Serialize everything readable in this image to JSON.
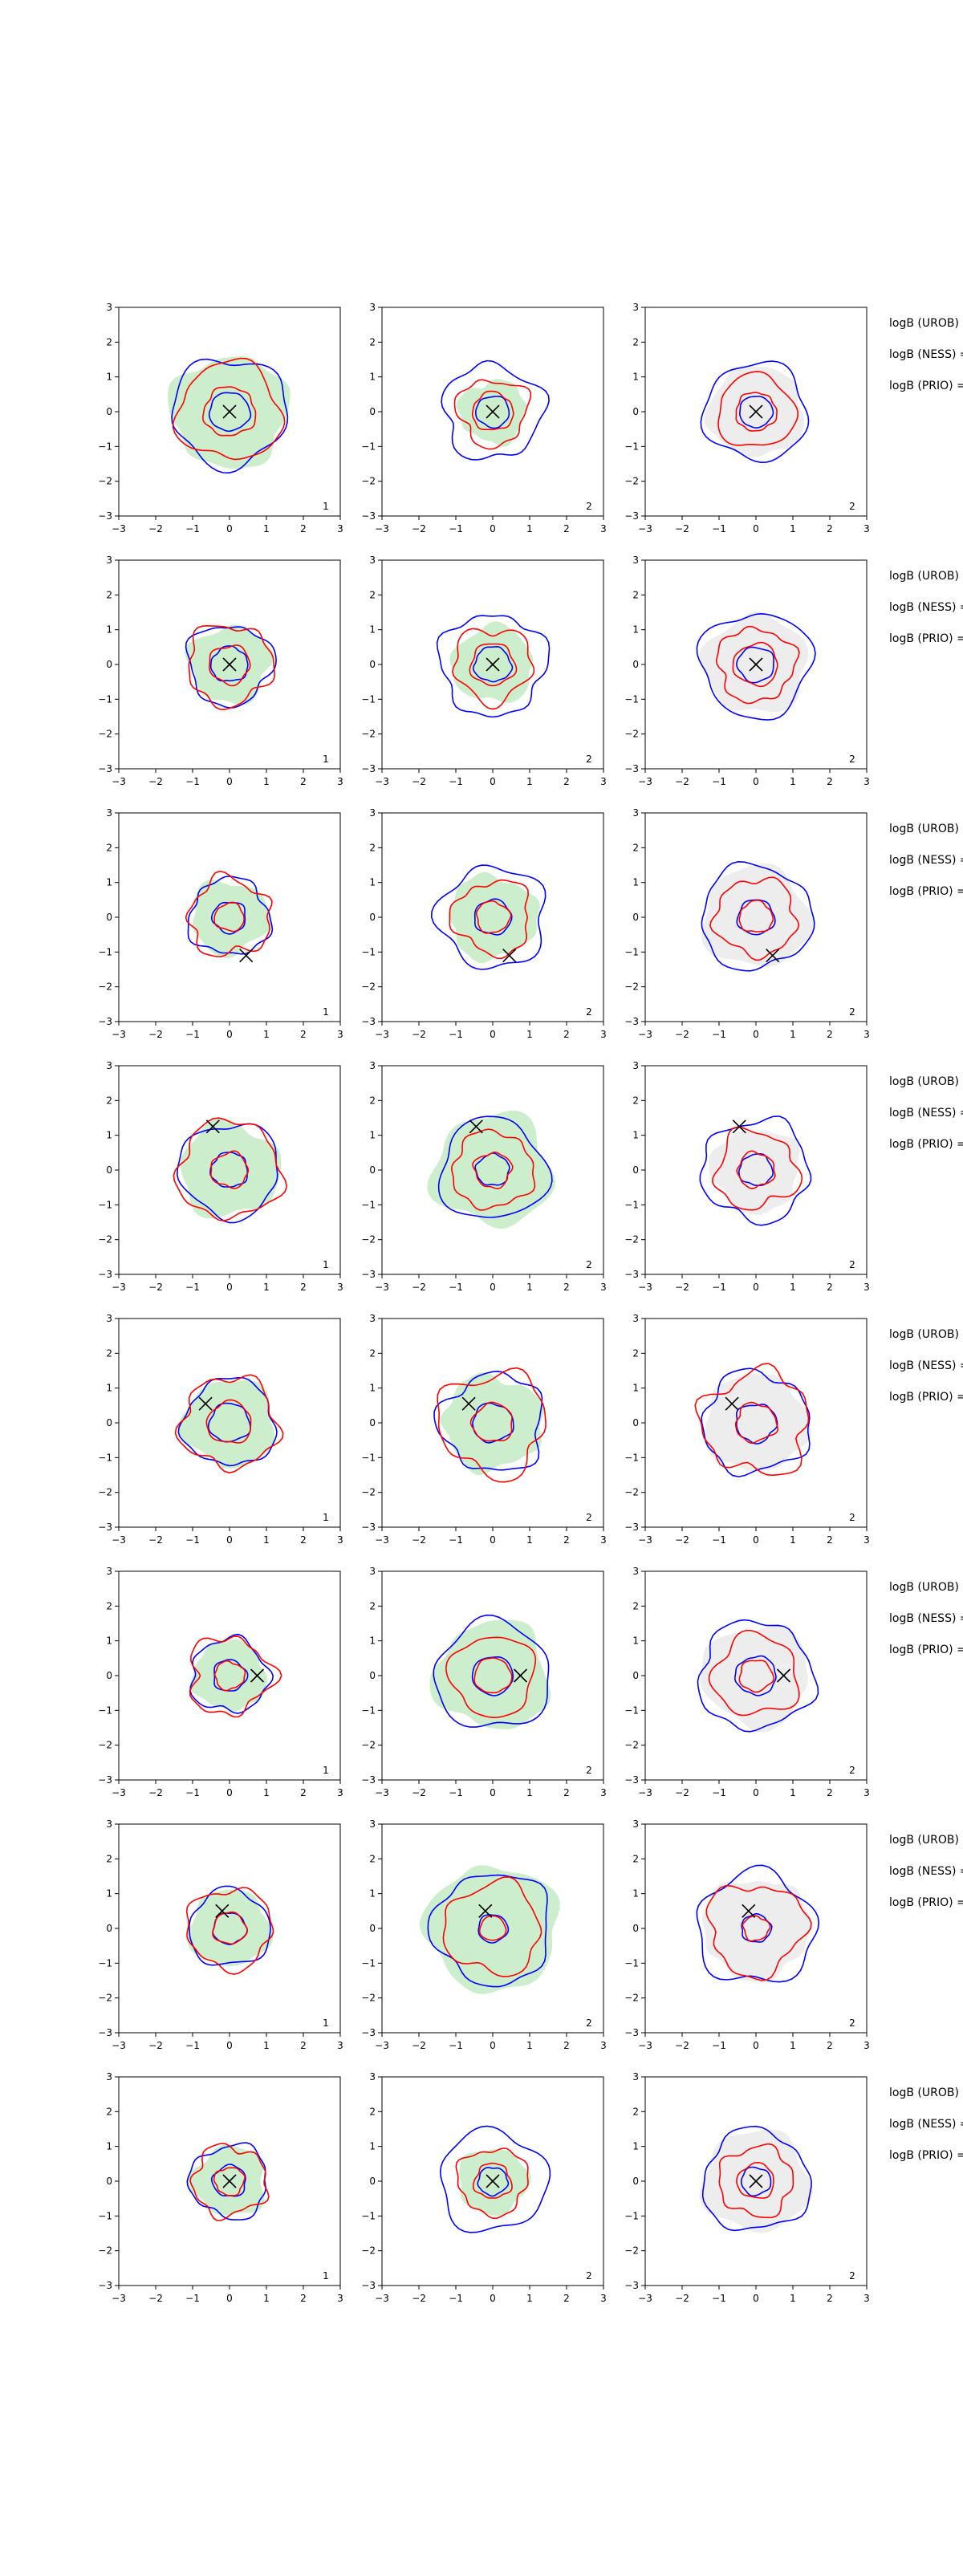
{
  "chart_data": {
    "type": "contour",
    "grid": false,
    "xlim": [
      -3,
      3
    ],
    "ylim": [
      -3,
      3
    ],
    "xticks": [
      "−3",
      "−2",
      "−1",
      "0",
      "1",
      "2",
      "3"
    ],
    "yticks": [
      "−3",
      "−2",
      "−1",
      "0",
      "1",
      "2",
      "3"
    ],
    "colors": {
      "blue": "#0000ff",
      "red": "#ff0000",
      "fill_green": "#cdeecd",
      "fill_gray": "#ededed",
      "marker": "#000000"
    },
    "column_fills": [
      "green",
      "green",
      "gray"
    ],
    "row_texts": [
      "logB (UROB)",
      "logB (NESS) =",
      "logB (PRIO) ="
    ],
    "rows": [
      {
        "marker": [
          0.0,
          0.0
        ],
        "panels": [
          {
            "label": "1",
            "blue_inner": 0.55,
            "blue_outer": 1.55,
            "red_inner": 0.7,
            "red_outer": 1.4,
            "fill": 1.6
          },
          {
            "label": "2",
            "blue_inner": 0.45,
            "blue_outer": 1.35,
            "red_inner": 0.55,
            "red_outer": 0.95,
            "fill": 0.9
          },
          {
            "label": "2",
            "blue_inner": 0.45,
            "blue_outer": 1.4,
            "red_inner": 0.55,
            "red_outer": 1.05,
            "fill": 1.3
          }
        ]
      },
      {
        "marker": [
          0.0,
          0.0
        ],
        "panels": [
          {
            "label": "1",
            "blue_inner": 0.5,
            "blue_outer": 1.15,
            "red_inner": 0.55,
            "red_outer": 1.15,
            "fill": 1.1
          },
          {
            "label": "2",
            "blue_inner": 0.5,
            "blue_outer": 1.45,
            "red_inner": 0.6,
            "red_outer": 1.05,
            "fill": 1.1
          },
          {
            "label": "2",
            "blue_inner": 0.5,
            "blue_outer": 1.5,
            "red_inner": 0.6,
            "red_outer": 1.05,
            "fill": 1.4
          }
        ]
      },
      {
        "marker": [
          0.45,
          -1.1
        ],
        "panels": [
          {
            "label": "1",
            "blue_inner": 0.45,
            "blue_outer": 1.1,
            "red_inner": 0.4,
            "red_outer": 1.1,
            "fill": 1.05
          },
          {
            "label": "2",
            "blue_inner": 0.5,
            "blue_outer": 1.45,
            "red_inner": 0.45,
            "red_outer": 1.05,
            "fill": 1.2
          },
          {
            "label": "2",
            "blue_inner": 0.5,
            "blue_outer": 1.5,
            "red_inner": 0.45,
            "red_outer": 1.1,
            "fill": 1.45
          }
        ]
      },
      {
        "marker": [
          -0.45,
          1.25
        ],
        "panels": [
          {
            "label": "1",
            "blue_inner": 0.5,
            "blue_outer": 1.35,
            "red_inner": 0.5,
            "red_outer": 1.4,
            "fill": 1.35
          },
          {
            "label": "2",
            "blue_inner": 0.45,
            "blue_outer": 1.45,
            "red_inner": 0.5,
            "red_outer": 1.1,
            "fill": 1.6
          },
          {
            "label": "2",
            "blue_inner": 0.45,
            "blue_outer": 1.45,
            "red_inner": 0.5,
            "red_outer": 1.1,
            "fill": 1.2
          }
        ]
      },
      {
        "marker": [
          -0.65,
          0.55
        ],
        "panels": [
          {
            "label": "1",
            "blue_inner": 0.55,
            "blue_outer": 1.25,
            "red_inner": 0.6,
            "red_outer": 1.3,
            "fill": 1.25
          },
          {
            "label": "2",
            "blue_inner": 0.55,
            "blue_outer": 1.4,
            "red_inner": 0.55,
            "red_outer": 1.45,
            "fill": 1.35
          },
          {
            "label": "2",
            "blue_inner": 0.55,
            "blue_outer": 1.45,
            "red_inner": 0.55,
            "red_outer": 1.45,
            "fill": 1.4
          }
        ]
      },
      {
        "marker": [
          0.75,
          0.0
        ],
        "panels": [
          {
            "label": "1",
            "blue_inner": 0.45,
            "blue_outer": 1.05,
            "red_inner": 0.4,
            "red_outer": 1.1,
            "fill": 1.0
          },
          {
            "label": "2",
            "blue_inner": 0.55,
            "blue_outer": 1.55,
            "red_inner": 0.5,
            "red_outer": 1.15,
            "fill": 1.55
          },
          {
            "label": "2",
            "blue_inner": 0.55,
            "blue_outer": 1.55,
            "red_inner": 0.45,
            "red_outer": 1.15,
            "fill": 1.45
          }
        ]
      },
      {
        "marker": [
          -0.2,
          0.5
        ],
        "panels": [
          {
            "label": "1",
            "blue_inner": 0.45,
            "blue_outer": 1.1,
            "red_inner": 0.45,
            "red_outer": 1.15,
            "fill": 1.1
          },
          {
            "label": "2",
            "blue_inner": 0.4,
            "blue_outer": 1.6,
            "red_inner": 0.35,
            "red_outer": 1.3,
            "fill": 1.8
          },
          {
            "label": "2",
            "blue_inner": 0.4,
            "blue_outer": 1.6,
            "red_inner": 0.35,
            "red_outer": 1.3,
            "fill": 1.45
          }
        ]
      },
      {
        "marker": [
          0.0,
          0.0
        ],
        "panels": [
          {
            "label": "1",
            "blue_inner": 0.45,
            "blue_outer": 1.05,
            "red_inner": 0.4,
            "red_outer": 1.0,
            "fill": 1.0
          },
          {
            "label": "2",
            "blue_inner": 0.4,
            "blue_outer": 1.45,
            "red_inner": 0.5,
            "red_outer": 0.95,
            "fill": 0.95
          },
          {
            "label": "2",
            "blue_inner": 0.4,
            "blue_outer": 1.45,
            "red_inner": 0.5,
            "red_outer": 1.0,
            "fill": 1.45
          }
        ]
      }
    ]
  }
}
